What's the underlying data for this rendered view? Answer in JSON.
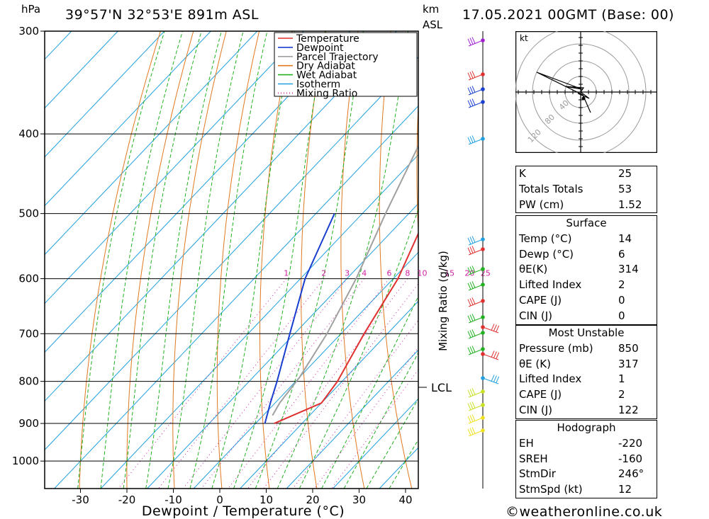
{
  "header": {
    "hpa_unit": "hPa",
    "location": "39°57'N 32°53'E 891m ASL",
    "km_unit": "km",
    "asl_unit": "ASL",
    "datetime": "17.05.2021 00GMT (Base: 00)"
  },
  "footer": {
    "copyright": "©weatheronline.co.uk"
  },
  "colors": {
    "temperature": "#e03030",
    "dewpoint": "#1a3fd0",
    "parcel": "#a0a0a0",
    "dry_adiabat": "#e07820",
    "wet_adiabat": "#20b020",
    "isotherm": "#20a0e0",
    "mixing_ratio": "#d020a0"
  },
  "chart_data": {
    "type": "line",
    "chart_kind": "Skew-T log-P diagram",
    "xlabel": "Dewpoint / Temperature (°C)",
    "ylabel": "hPa",
    "x_ticks": [
      -30,
      -20,
      -10,
      0,
      10,
      20,
      30,
      40
    ],
    "y_ticks": [
      300,
      400,
      500,
      600,
      700,
      800,
      900,
      1000
    ],
    "ylim": [
      1080,
      300
    ],
    "y_scale": "log",
    "legend": [
      "Temperature",
      "Dewpoint",
      "Parcel Trajectory",
      "Dry Adiabat",
      "Wet Adiabat",
      "Isotherm",
      "Mixing Ratio"
    ],
    "legend_position": "top-right",
    "mixing_ratio_axis_label": "Mixing Ratio (g/kg)",
    "mixing_ratio_labels": [
      "1",
      "2",
      "3",
      "4",
      "6",
      "8",
      "10",
      "15",
      "20",
      "25"
    ],
    "lcl_label": "LCL",
    "lcl_pressure": 800,
    "series": [
      {
        "name": "Temperature",
        "points": [
          [
            500,
            -6
          ],
          [
            600,
            1
          ],
          [
            700,
            5
          ],
          [
            800,
            9
          ],
          [
            850,
            10
          ],
          [
            900,
            4
          ]
        ]
      },
      {
        "name": "Dewpoint",
        "points": [
          [
            500,
            -26
          ],
          [
            600,
            -19
          ],
          [
            700,
            -11
          ],
          [
            800,
            -4
          ],
          [
            850,
            -1
          ],
          [
            900,
            2
          ]
        ]
      },
      {
        "name": "Parcel Trajectory",
        "points": [
          [
            300,
            -33
          ],
          [
            400,
            -23
          ],
          [
            500,
            -15
          ],
          [
            600,
            -8
          ],
          [
            700,
            -3
          ],
          [
            790,
            0
          ],
          [
            850,
            1
          ],
          [
            880,
            2
          ]
        ]
      }
    ],
    "hodograph": {
      "unit_label": "kt",
      "ring_labels": [
        "40",
        "80",
        "120"
      ]
    }
  },
  "indices": {
    "general": [
      {
        "label": "K",
        "value": "25"
      },
      {
        "label": "Totals Totals",
        "value": "53"
      },
      {
        "label": "PW (cm)",
        "value": "1.52"
      }
    ],
    "surface": {
      "title": "Surface",
      "rows": [
        {
          "label": "Temp (°C)",
          "value": "14"
        },
        {
          "label": "Dewp (°C)",
          "value": "6"
        },
        {
          "label": "θE(K)",
          "value": "314"
        },
        {
          "label": "Lifted Index",
          "value": "2"
        },
        {
          "label": "CAPE (J)",
          "value": "0"
        },
        {
          "label": "CIN (J)",
          "value": "0"
        }
      ]
    },
    "most_unstable": {
      "title": "Most Unstable",
      "rows": [
        {
          "label": "Pressure (mb)",
          "value": "850"
        },
        {
          "label": "θE (K)",
          "value": "317"
        },
        {
          "label": "Lifted Index",
          "value": "1"
        },
        {
          "label": "CAPE (J)",
          "value": "2"
        },
        {
          "label": "CIN (J)",
          "value": "122"
        }
      ]
    },
    "hodograph_box": {
      "title": "Hodograph",
      "rows": [
        {
          "label": "EH",
          "value": "-220"
        },
        {
          "label": "SREH",
          "value": "-160"
        },
        {
          "label": "StmDir",
          "value": "246°"
        },
        {
          "label": "StmSpd (kt)",
          "value": "12"
        }
      ]
    }
  }
}
